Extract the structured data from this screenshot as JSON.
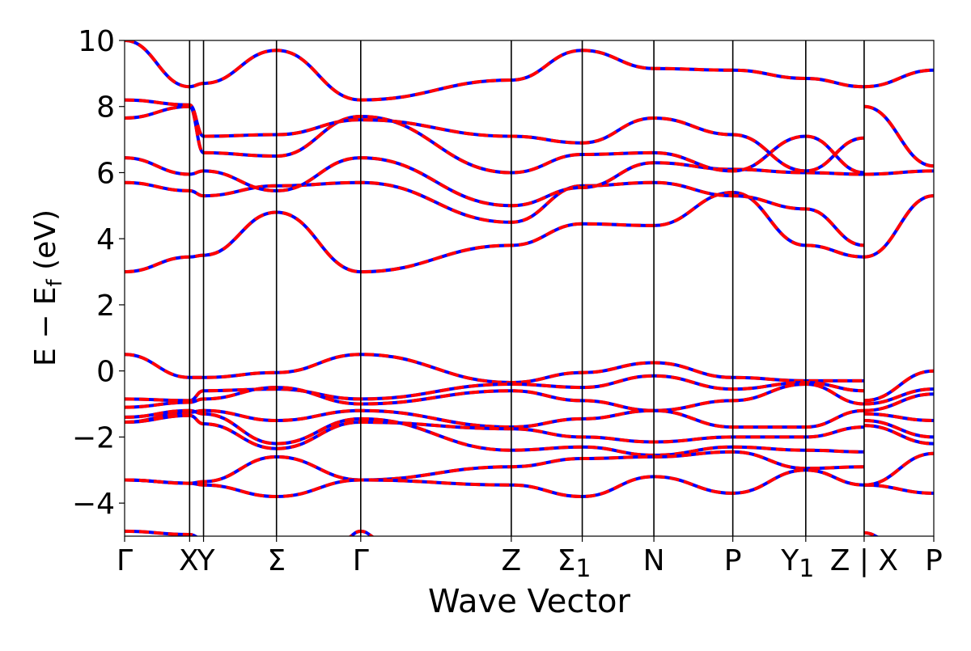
{
  "chart_data": {
    "type": "line",
    "title": "",
    "xlabel": "Wave Vector",
    "ylabel": "E − E",
    "ylabel_sub": "f",
    "ylabel_unit": " (eV)",
    "ylim": [
      -5,
      10
    ],
    "xlim": [
      0,
      12.2
    ],
    "grid": false,
    "legend": "none",
    "yticks": [
      {
        "value": -4,
        "label": "−4"
      },
      {
        "value": -2,
        "label": "−2"
      },
      {
        "value": 0,
        "label": "0"
      },
      {
        "value": 2,
        "label": "2"
      },
      {
        "value": 4,
        "label": "4"
      },
      {
        "value": 6,
        "label": "6"
      },
      {
        "value": 8,
        "label": "8"
      },
      {
        "value": 10,
        "label": "10"
      }
    ],
    "kpoints": [
      {
        "x": 0.0,
        "label": "Γ",
        "line": false
      },
      {
        "x": 0.98,
        "label": "X",
        "line": true
      },
      {
        "x": 1.19,
        "label": "Y",
        "line": true
      },
      {
        "x": 2.29,
        "label": "Σ",
        "line": true
      },
      {
        "x": 3.56,
        "label": "Γ",
        "line": true
      },
      {
        "x": 5.83,
        "label": "Z",
        "line": true
      },
      {
        "x": 6.9,
        "label": "Σ",
        "sub": "1",
        "line": true
      },
      {
        "x": 7.98,
        "label": "N",
        "line": true
      },
      {
        "x": 9.17,
        "label": "P",
        "line": true
      },
      {
        "x": 10.27,
        "label": "Y",
        "sub": "1",
        "line": true
      },
      {
        "x": 11.15,
        "label": "Z | X",
        "line": true
      },
      {
        "x": 12.2,
        "label": "P",
        "line": false
      }
    ],
    "series_style": {
      "colors": [
        "#0000ff",
        "#ff0000"
      ],
      "note_text": ""
    },
    "series": [
      {
        "x": [
          0,
          0.98,
          1.19,
          2.29,
          3.56,
          5.83,
          6.9,
          7.98,
          9.17,
          10.27,
          11.15
        ],
        "values": [
          3.0,
          3.45,
          3.5,
          4.8,
          3.0,
          3.8,
          4.45,
          4.4,
          5.4,
          3.8,
          3.45
        ]
      },
      {
        "x": [
          0,
          0.98,
          1.19,
          2.29,
          3.56,
          5.83,
          6.9,
          7.98,
          9.17,
          10.27,
          11.15
        ],
        "values": [
          5.7,
          5.45,
          5.3,
          5.6,
          5.7,
          4.5,
          5.6,
          5.7,
          5.3,
          4.9,
          3.8
        ]
      },
      {
        "x": [
          0,
          0.98,
          1.19,
          2.29,
          3.56,
          5.83,
          6.9,
          7.98,
          9.17,
          10.27,
          11.15
        ],
        "values": [
          6.45,
          5.95,
          6.05,
          5.45,
          6.45,
          5.0,
          5.55,
          6.3,
          6.1,
          6.0,
          5.95
        ]
      },
      {
        "x": [
          0,
          0.98,
          1.19,
          2.29,
          3.56,
          5.83,
          6.9,
          7.98,
          9.17,
          10.27,
          11.15
        ],
        "values": [
          7.65,
          8.0,
          6.6,
          6.5,
          7.7,
          6.0,
          6.55,
          6.6,
          6.05,
          7.1,
          6.0
        ]
      },
      {
        "x": [
          0,
          0.98,
          1.19,
          2.29,
          3.56,
          5.83,
          6.9,
          7.98,
          9.17,
          10.27,
          11.15
        ],
        "values": [
          8.2,
          8.05,
          7.1,
          7.15,
          7.6,
          7.1,
          6.9,
          7.65,
          7.15,
          6.05,
          7.05
        ]
      },
      {
        "x": [
          0,
          0.98,
          1.19,
          2.29,
          3.56,
          5.83,
          6.9,
          7.98,
          9.17,
          10.27,
          11.15
        ],
        "values": [
          10.0,
          8.6,
          8.7,
          9.7,
          8.2,
          8.8,
          9.7,
          9.15,
          9.1,
          8.85,
          8.6
        ]
      },
      {
        "x": [
          11.15,
          12.2
        ],
        "values": [
          3.45,
          5.3
        ]
      },
      {
        "x": [
          11.15,
          12.2
        ],
        "values": [
          5.95,
          6.05
        ]
      },
      {
        "x": [
          11.15,
          12.2
        ],
        "values": [
          8.0,
          6.2
        ]
      },
      {
        "x": [
          11.15,
          12.2
        ],
        "values": [
          8.6,
          9.1
        ]
      },
      {
        "x": [
          0,
          0.98,
          1.19,
          2.29,
          3.56,
          5.83,
          6.9,
          7.98,
          9.17,
          10.27,
          11.15
        ],
        "values": [
          0.5,
          -0.2,
          -0.2,
          -0.05,
          0.5,
          -0.35,
          -0.05,
          0.25,
          -0.2,
          -0.3,
          -0.3
        ]
      },
      {
        "x": [
          0,
          0.98,
          1.19,
          2.29,
          3.56,
          5.83,
          6.9,
          7.98,
          9.17,
          10.27,
          11.15
        ],
        "values": [
          -0.85,
          -0.9,
          -0.6,
          -0.55,
          -0.85,
          -0.4,
          -0.5,
          -0.15,
          -0.55,
          -0.35,
          -0.6
        ]
      },
      {
        "x": [
          0,
          0.98,
          1.19,
          2.29,
          3.56,
          5.83,
          6.9,
          7.98,
          9.17,
          10.27,
          11.15
        ],
        "values": [
          -1.1,
          -0.95,
          -0.85,
          -0.5,
          -1.0,
          -0.6,
          -0.9,
          -1.2,
          -0.9,
          -0.4,
          -1.0
        ]
      },
      {
        "x": [
          0,
          0.98,
          1.19,
          2.29,
          3.56,
          5.83,
          6.9,
          7.98,
          9.17,
          10.27,
          11.15
        ],
        "values": [
          -1.55,
          -1.25,
          -1.2,
          -1.5,
          -1.2,
          -1.7,
          -1.45,
          -1.2,
          -1.7,
          -1.7,
          -1.2
        ]
      },
      {
        "x": [
          0,
          0.98,
          1.19,
          2.29,
          3.56,
          5.83,
          6.9,
          7.98,
          9.17,
          10.27,
          11.15
        ],
        "values": [
          -1.55,
          -1.35,
          -1.6,
          -2.35,
          -1.55,
          -1.75,
          -2.0,
          -2.15,
          -2.0,
          -2.0,
          -1.7
        ]
      },
      {
        "x": [
          0,
          0.98,
          1.19,
          2.29,
          3.56,
          5.83,
          6.9,
          7.98,
          9.17,
          10.27,
          11.15
        ],
        "values": [
          -1.4,
          -1.2,
          -1.3,
          -2.2,
          -1.45,
          -2.4,
          -2.3,
          -2.55,
          -2.3,
          -2.4,
          -2.45
        ]
      },
      {
        "x": [
          0,
          0.98,
          1.19,
          2.29,
          3.56,
          5.83,
          6.9,
          7.98,
          9.17,
          10.27,
          11.15
        ],
        "values": [
          -3.3,
          -3.4,
          -3.35,
          -2.6,
          -3.3,
          -2.9,
          -2.65,
          -2.6,
          -2.45,
          -2.95,
          -2.9
        ]
      },
      {
        "x": [
          0,
          0.98,
          1.19,
          2.29,
          3.56,
          5.83,
          6.9,
          7.98,
          9.17,
          10.27,
          11.15
        ],
        "values": [
          -3.3,
          -3.4,
          -3.45,
          -3.8,
          -3.3,
          -3.45,
          -3.8,
          -3.2,
          -3.7,
          -3.0,
          -3.45
        ]
      },
      {
        "x": [
          11.15,
          12.2
        ],
        "values": [
          -0.9,
          0.0
        ]
      },
      {
        "x": [
          11.15,
          12.2
        ],
        "values": [
          -1.0,
          -0.55
        ]
      },
      {
        "x": [
          11.15,
          12.2
        ],
        "values": [
          -1.2,
          -0.7
        ]
      },
      {
        "x": [
          11.15,
          12.2
        ],
        "values": [
          -1.3,
          -1.5
        ]
      },
      {
        "x": [
          11.15,
          12.2
        ],
        "values": [
          -1.5,
          -2.0
        ]
      },
      {
        "x": [
          11.15,
          12.2
        ],
        "values": [
          -1.65,
          -2.2
        ]
      },
      {
        "x": [
          11.15,
          12.2
        ],
        "values": [
          -3.45,
          -3.7
        ]
      },
      {
        "x": [
          11.15,
          12.2
        ],
        "values": [
          -3.45,
          -2.5
        ]
      },
      {
        "x": [
          0,
          0.98,
          1.19
        ],
        "values": [
          -4.85,
          -4.95,
          -5.1
        ]
      },
      {
        "x": [
          3.3,
          3.56,
          3.85
        ],
        "values": [
          -5.1,
          -4.85,
          -5.1
        ]
      },
      {
        "x": [
          11.15,
          11.5
        ],
        "values": [
          -4.9,
          -5.1
        ]
      }
    ]
  }
}
